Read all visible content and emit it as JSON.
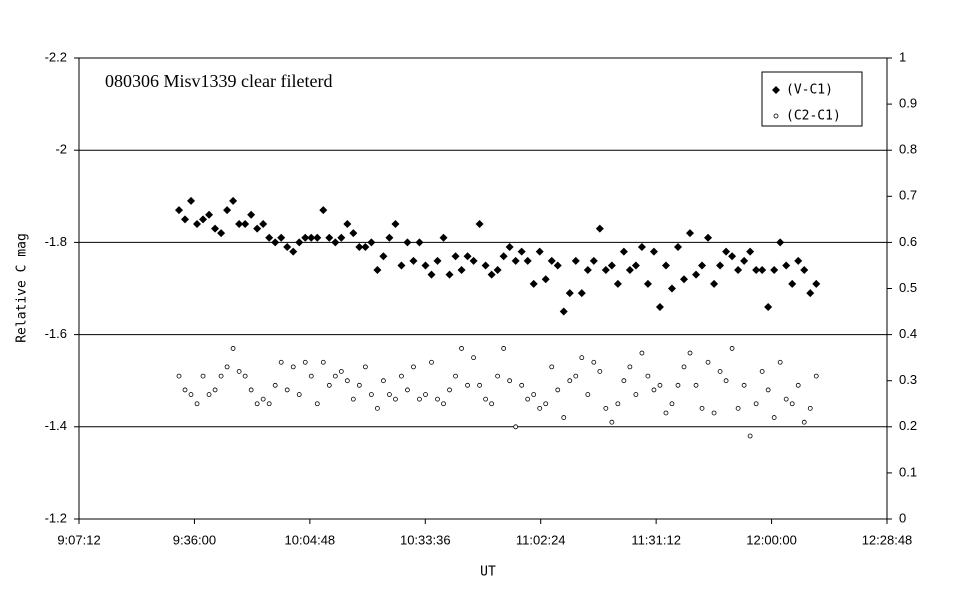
{
  "chart_data": {
    "type": "scatter",
    "title": "080306 Misv1339 clear fileterd",
    "xlabel": "UT",
    "ylabel": "Relative C mag",
    "x": [
      34329,
      34419,
      34509,
      34599,
      34689,
      34779,
      34869,
      34959,
      35049,
      35139,
      35229,
      35319,
      35409,
      35499,
      35589,
      35679,
      35769,
      35859,
      35949,
      36039,
      36129,
      36219,
      36309,
      36399,
      36489,
      36579,
      36669,
      36759,
      36849,
      36939,
      37029,
      37119,
      37209,
      37299,
      37389,
      37479,
      37569,
      37659,
      37749,
      37839,
      37929,
      38019,
      38109,
      38199,
      38289,
      38379,
      38469,
      38559,
      38649,
      38739,
      38829,
      38919,
      39009,
      39099,
      39189,
      39279,
      39369,
      39459,
      39549,
      39639,
      39729,
      39819,
      39909,
      39999,
      40089,
      40179,
      40269,
      40359,
      40449,
      40539,
      40629,
      40719,
      40809,
      40899,
      40989,
      41079,
      41169,
      41259,
      41349,
      41439,
      41529,
      41619,
      41709,
      41799,
      41889,
      41979,
      42069,
      42159,
      42249,
      42339,
      42429,
      42519,
      42609,
      42699,
      42789,
      42879,
      42969,
      43059,
      43149,
      43239,
      43329,
      43419,
      43509,
      43599,
      43689,
      43779,
      43869
    ],
    "series": [
      {
        "name": "(V-C1)",
        "color": "#000000",
        "marker": "diamond",
        "values": [
          -1.87,
          -1.85,
          -1.89,
          -1.84,
          -1.85,
          -1.86,
          -1.83,
          -1.82,
          -1.87,
          -1.89,
          -1.84,
          -1.84,
          -1.86,
          -1.83,
          -1.84,
          -1.81,
          -1.8,
          -1.81,
          -1.79,
          -1.78,
          -1.8,
          -1.81,
          -1.81,
          -1.81,
          -1.87,
          -1.81,
          -1.8,
          -1.81,
          -1.84,
          -1.82,
          -1.79,
          -1.79,
          -1.8,
          -1.74,
          -1.77,
          -1.81,
          -1.84,
          -1.75,
          -1.8,
          -1.76,
          -1.8,
          -1.75,
          -1.73,
          -1.76,
          -1.81,
          -1.73,
          -1.77,
          -1.74,
          -1.77,
          -1.76,
          -1.84,
          -1.75,
          -1.73,
          -1.74,
          -1.77,
          -1.79,
          -1.76,
          -1.78,
          -1.76,
          -1.71,
          -1.78,
          -1.72,
          -1.76,
          -1.75,
          -1.65,
          -1.69,
          -1.76,
          -1.69,
          -1.74,
          -1.76,
          -1.83,
          -1.74,
          -1.75,
          -1.71,
          -1.78,
          -1.74,
          -1.75,
          -1.79,
          -1.71,
          -1.78,
          -1.66,
          -1.75,
          -1.7,
          -1.79,
          -1.72,
          -1.82,
          -1.73,
          -1.75,
          -1.81,
          -1.71,
          -1.75,
          -1.78,
          -1.77,
          -1.74,
          -1.76,
          -1.78,
          -1.74,
          -1.74,
          -1.66,
          -1.74,
          -1.8,
          -1.75,
          -1.71,
          -1.76,
          -1.74,
          -1.69,
          -1.71
        ]
      },
      {
        "name": "(C2-C1)",
        "color": "#000000",
        "marker": "circle",
        "axis": "y2",
        "values": [
          0.31,
          0.28,
          0.27,
          0.25,
          0.31,
          0.27,
          0.28,
          0.31,
          0.33,
          0.37,
          0.32,
          0.31,
          0.28,
          0.25,
          0.26,
          0.25,
          0.29,
          0.34,
          0.28,
          0.33,
          0.27,
          0.34,
          0.31,
          0.25,
          0.34,
          0.29,
          0.31,
          0.32,
          0.3,
          0.26,
          0.29,
          0.33,
          0.27,
          0.24,
          0.3,
          0.27,
          0.26,
          0.31,
          0.28,
          0.33,
          0.26,
          0.27,
          0.34,
          0.26,
          0.25,
          0.28,
          0.31,
          0.37,
          0.29,
          0.35,
          0.29,
          0.26,
          0.25,
          0.31,
          0.37,
          0.3,
          0.2,
          0.29,
          0.26,
          0.27,
          0.24,
          0.25,
          0.33,
          0.28,
          0.22,
          0.3,
          0.31,
          0.35,
          0.27,
          0.34,
          0.32,
          0.24,
          0.21,
          0.25,
          0.3,
          0.33,
          0.27,
          0.36,
          0.31,
          0.28,
          0.29,
          0.23,
          0.25,
          0.29,
          0.33,
          0.36,
          0.29,
          0.24,
          0.34,
          0.23,
          0.32,
          0.3,
          0.37,
          0.24,
          0.29,
          0.18,
          0.25,
          0.32,
          0.28,
          0.22,
          0.34,
          0.26,
          0.25,
          0.29,
          0.21,
          0.24,
          0.31
        ]
      }
    ],
    "xlim": [
      32832,
      44928
    ],
    "xticks": [
      {
        "value": 32832,
        "label": "9:07:12"
      },
      {
        "value": 34560,
        "label": "9:36:00"
      },
      {
        "value": 36288,
        "label": "10:04:48"
      },
      {
        "value": 38016,
        "label": "10:33:36"
      },
      {
        "value": 39744,
        "label": "11:02:24"
      },
      {
        "value": 41472,
        "label": "11:31:12"
      },
      {
        "value": 43200,
        "label": "12:00:00"
      },
      {
        "value": 44928,
        "label": "12:28:48"
      }
    ],
    "ylim": [
      -1.2,
      -2.2
    ],
    "yticks": [
      -2.2,
      -2,
      -1.8,
      -1.6,
      -1.4,
      -1.2
    ],
    "y2lim": [
      0,
      1
    ],
    "y2ticks": [
      0,
      0.1,
      0.2,
      0.3,
      0.4,
      0.5,
      0.6,
      0.7,
      0.8,
      0.9,
      1
    ],
    "grid": true,
    "legend": "top-right"
  }
}
